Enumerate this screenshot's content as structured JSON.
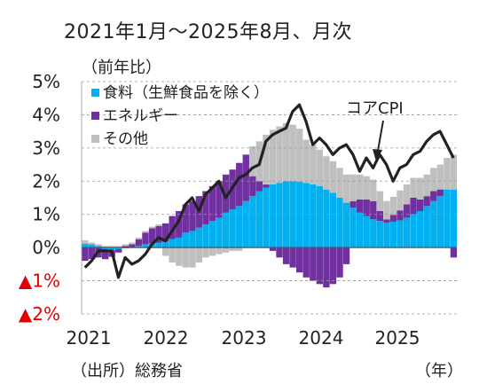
{
  "chart_data": {
    "type": "bar",
    "title": "2021年1月～2025年8月、月次",
    "ylabel": "（前年比）",
    "xlabel": "（年）",
    "source": "（出所）総務省",
    "ylim": [
      -2,
      5
    ],
    "y_ticks": [
      {
        "value": 5,
        "label": "5%",
        "color": "#222222"
      },
      {
        "value": 4,
        "label": "4%",
        "color": "#222222"
      },
      {
        "value": 3,
        "label": "3%",
        "color": "#222222"
      },
      {
        "value": 2,
        "label": "2%",
        "color": "#222222"
      },
      {
        "value": 1,
        "label": "1%",
        "color": "#222222"
      },
      {
        "value": 0,
        "label": "0%",
        "color": "#222222"
      },
      {
        "value": -1,
        "label": "▲1%",
        "color": "#e00000"
      },
      {
        "value": -2,
        "label": "▲2%",
        "color": "#e00000"
      }
    ],
    "x_tick_labels": [
      "2021",
      "2022",
      "2023",
      "2024",
      "2025"
    ],
    "grid": true,
    "legend_placement": "top-left",
    "annotation": "コアCPI",
    "x": [
      "2021-01",
      "2021-02",
      "2021-03",
      "2021-04",
      "2021-05",
      "2021-06",
      "2021-07",
      "2021-08",
      "2021-09",
      "2021-10",
      "2021-11",
      "2021-12",
      "2022-01",
      "2022-02",
      "2022-03",
      "2022-04",
      "2022-05",
      "2022-06",
      "2022-07",
      "2022-08",
      "2022-09",
      "2022-10",
      "2022-11",
      "2022-12",
      "2023-01",
      "2023-02",
      "2023-03",
      "2023-04",
      "2023-05",
      "2023-06",
      "2023-07",
      "2023-08",
      "2023-09",
      "2023-10",
      "2023-11",
      "2023-12",
      "2024-01",
      "2024-02",
      "2024-03",
      "2024-04",
      "2024-05",
      "2024-06",
      "2024-07",
      "2024-08",
      "2024-09",
      "2024-10",
      "2024-11",
      "2024-12",
      "2025-01",
      "2025-02",
      "2025-03",
      "2025-04",
      "2025-05",
      "2025-06",
      "2025-07",
      "2025-08"
    ],
    "series": [
      {
        "name": "食料（生鮮食品を除く）",
        "kind": "bar",
        "color": "#00b0f0",
        "values": [
          0.12,
          0.1,
          0.05,
          -0.05,
          -0.08,
          -0.05,
          -0.02,
          0.0,
          0.05,
          0.1,
          0.13,
          0.15,
          0.18,
          0.25,
          0.3,
          0.45,
          0.5,
          0.6,
          0.7,
          0.8,
          0.9,
          1.05,
          1.15,
          1.25,
          1.4,
          1.55,
          1.7,
          1.8,
          1.9,
          1.95,
          2.0,
          2.0,
          1.98,
          1.95,
          1.9,
          1.85,
          1.75,
          1.65,
          1.5,
          1.35,
          1.2,
          1.05,
          0.95,
          0.85,
          0.8,
          0.75,
          0.78,
          0.82,
          0.9,
          1.0,
          1.1,
          1.25,
          1.4,
          1.55,
          1.75,
          1.75
        ]
      },
      {
        "name": "エネルギー",
        "kind": "bar",
        "color": "#7030a0",
        "values": [
          -0.4,
          -0.35,
          -0.3,
          -0.3,
          -0.2,
          -0.1,
          0.05,
          0.1,
          0.2,
          0.35,
          0.45,
          0.5,
          0.55,
          0.7,
          0.8,
          0.85,
          0.9,
          0.95,
          1.0,
          1.05,
          1.1,
          1.15,
          1.2,
          1.3,
          1.4,
          0.6,
          0.3,
          0.1,
          -0.1,
          -0.3,
          -0.5,
          -0.6,
          -0.75,
          -0.9,
          -1.0,
          -1.1,
          -1.2,
          -1.1,
          -0.9,
          -0.5,
          0.2,
          0.4,
          0.5,
          0.55,
          0.3,
          0.1,
          0.2,
          0.3,
          0.4,
          0.5,
          0.35,
          0.3,
          0.3,
          0.2,
          0.0,
          -0.3
        ]
      },
      {
        "name": "その他",
        "kind": "bar",
        "color": "#bfbfbf",
        "values": [
          0.1,
          0.05,
          0.05,
          0.05,
          0.05,
          0.05,
          0.05,
          0.05,
          0.05,
          0.05,
          0.05,
          0.05,
          -0.25,
          -0.45,
          -0.55,
          -0.6,
          -0.6,
          -0.45,
          -0.3,
          -0.25,
          -0.2,
          -0.15,
          -0.1,
          -0.1,
          0.0,
          0.9,
          1.2,
          1.5,
          1.65,
          1.7,
          1.75,
          1.7,
          1.6,
          1.3,
          1.2,
          1.1,
          1.0,
          0.95,
          0.9,
          0.85,
          0.8,
          0.75,
          0.7,
          0.65,
          0.6,
          0.55,
          0.55,
          0.6,
          0.6,
          0.6,
          0.65,
          0.65,
          0.7,
          0.75,
          0.95,
          1.05
        ]
      },
      {
        "name": "コアCPI",
        "kind": "line",
        "color": "#222222",
        "values": [
          -0.6,
          -0.4,
          -0.1,
          -0.1,
          -0.1,
          -0.9,
          -0.3,
          -0.5,
          -0.4,
          -0.2,
          0.1,
          0.3,
          0.2,
          0.5,
          0.8,
          1.3,
          1.5,
          1.1,
          1.6,
          1.8,
          2.0,
          1.5,
          1.8,
          2.1,
          2.2,
          2.4,
          2.5,
          3.2,
          3.4,
          3.5,
          3.6,
          4.1,
          4.3,
          3.8,
          3.1,
          3.3,
          3.1,
          2.8,
          3.0,
          3.1,
          2.8,
          2.3,
          2.7,
          2.4,
          2.8,
          2.5,
          2.0,
          2.4,
          2.5,
          2.8,
          2.9,
          3.2,
          3.4,
          3.5,
          3.1,
          2.7
        ]
      }
    ]
  }
}
